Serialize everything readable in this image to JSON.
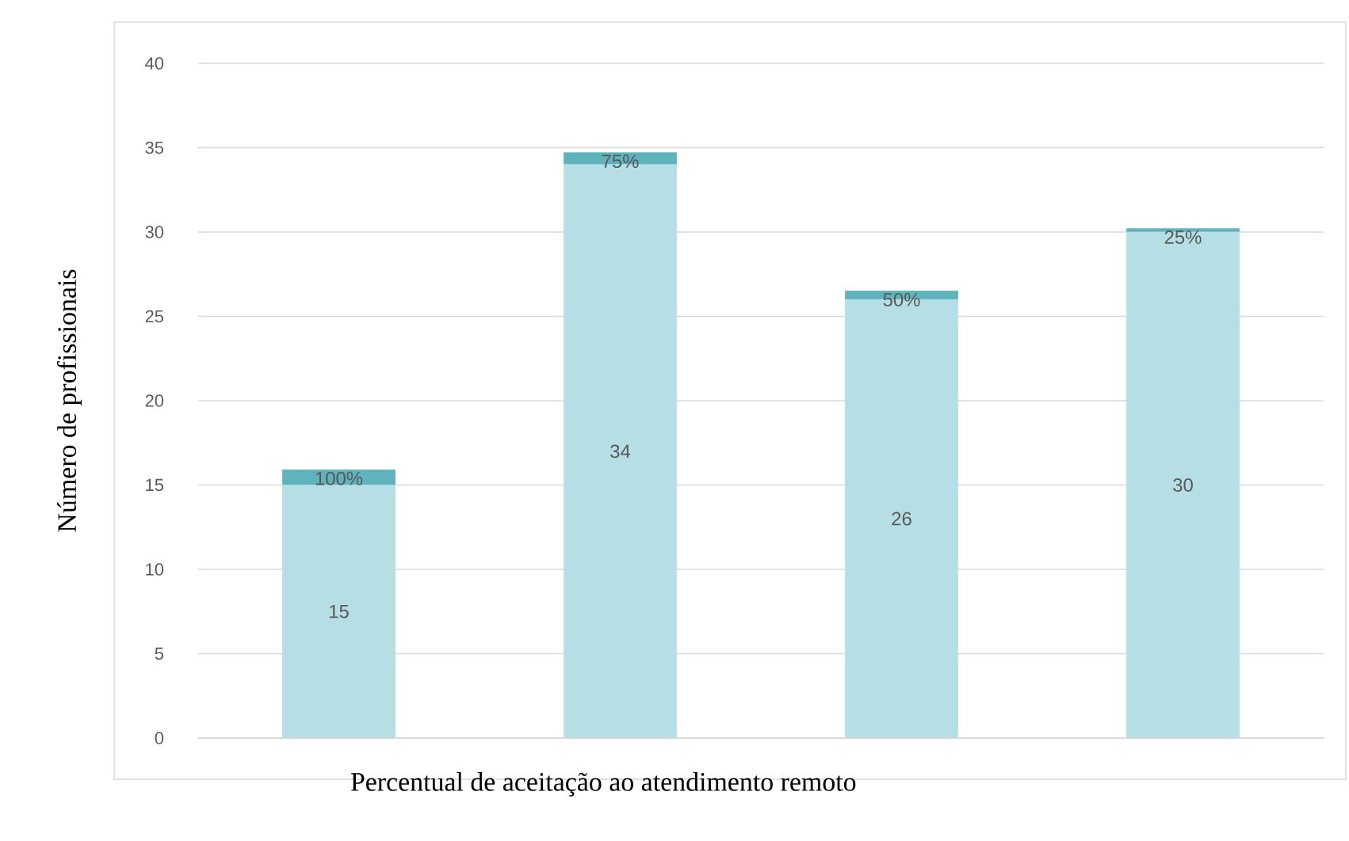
{
  "chart_data": {
    "type": "bar",
    "stacked": true,
    "xlabel": "Percentual de aceitação ao atendimento remoto",
    "ylabel": "Número de profissionais",
    "categories": [
      "100%",
      "75%",
      "50%",
      "25%"
    ],
    "series": [
      {
        "color": "#b5dfe5",
        "values": [
          15,
          34,
          26,
          30
        ],
        "value_labels": [
          "15",
          "34",
          "26",
          "30"
        ]
      },
      {
        "color": "#5fb3bd",
        "values": [
          0.9,
          0.7,
          0.5,
          0.2
        ]
      }
    ],
    "ylim": [
      0,
      40
    ],
    "yticks": [
      0,
      5,
      10,
      15,
      20,
      25,
      30,
      35,
      40
    ],
    "grid": "y",
    "tick_labels": "y"
  }
}
